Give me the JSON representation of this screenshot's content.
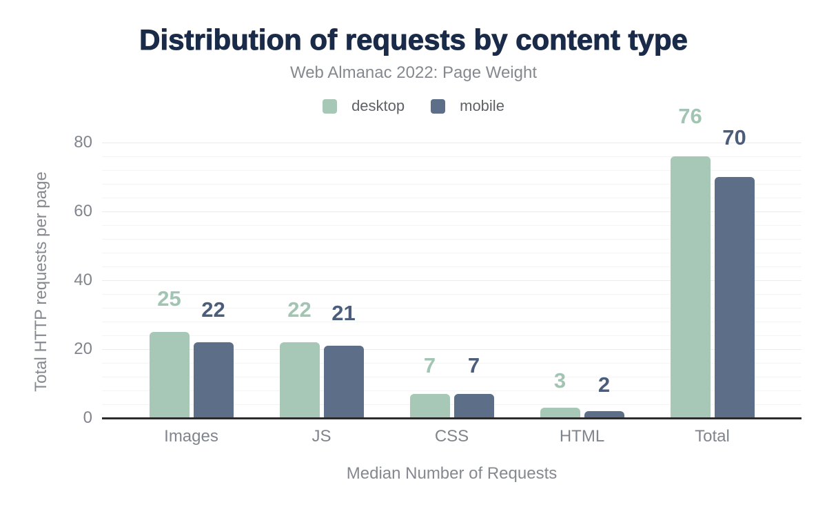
{
  "header": {
    "title": "Distribution of requests by content type",
    "subtitle": "Web Almanac 2022: Page Weight"
  },
  "chart_data": {
    "type": "bar",
    "title": "Distribution of requests by content type",
    "subtitle": "Web Almanac 2022: Page Weight",
    "categories": [
      "Images",
      "JS",
      "CSS",
      "HTML",
      "Total"
    ],
    "series": [
      {
        "name": "desktop",
        "color": "#a7c8b6",
        "label_color": "#a2c4b2",
        "values": [
          25,
          22,
          7,
          3,
          76
        ]
      },
      {
        "name": "mobile",
        "color": "#5d6e88",
        "label_color": "#4c5d7b",
        "values": [
          22,
          21,
          7,
          2,
          70
        ]
      }
    ],
    "xlabel": "Median Number of Requests",
    "ylabel": "Total HTTP requests per page",
    "ylim": [
      0,
      80
    ],
    "yticks": [
      0,
      20,
      40,
      60,
      80
    ],
    "minor_grid_step": 4,
    "legend_position": "top",
    "grid": "horizontal",
    "background_color": "#ffffff",
    "title_color": "#1a2b49",
    "subtitle_color": "#85898f",
    "axis_text_color": "#80858d",
    "axis_line_color": "#2b2b2b"
  }
}
